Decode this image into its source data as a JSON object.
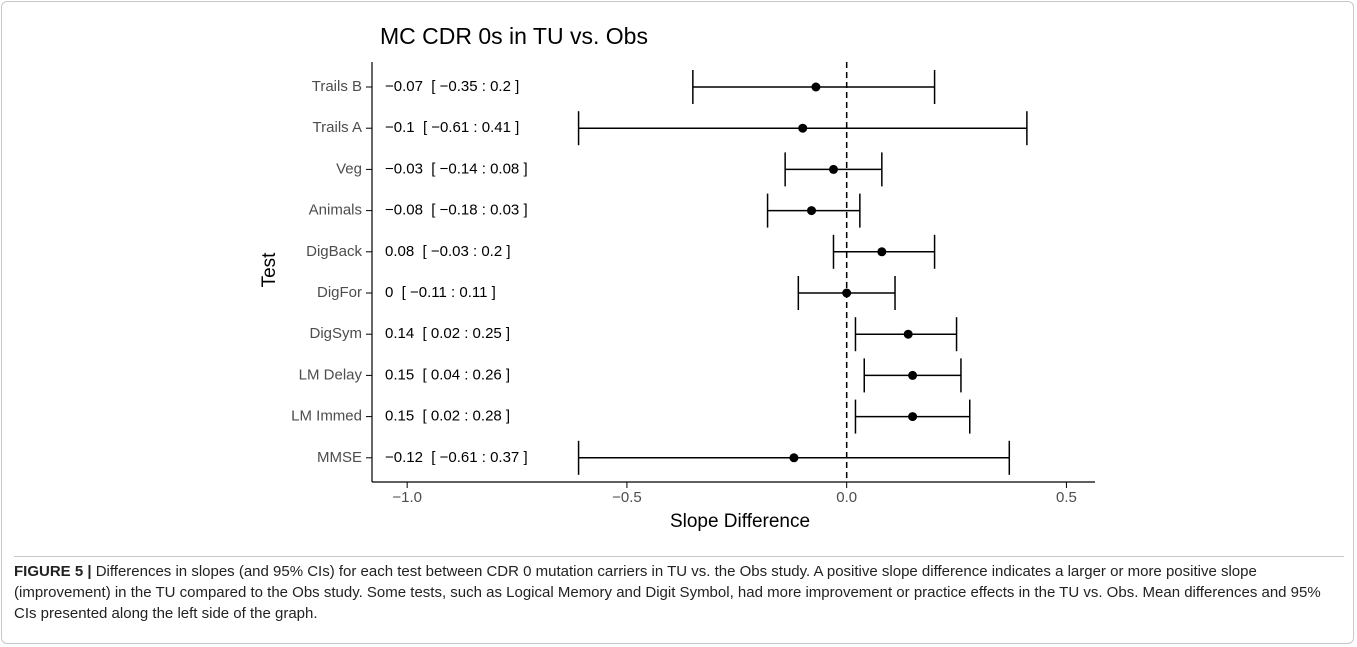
{
  "chart_data": {
    "type": "forest",
    "title": "MC CDR 0s in TU vs. Obs",
    "x_label": "Slope Difference",
    "y_label": "Test",
    "categories": [
      "Trails B",
      "Trails A",
      "Veg",
      "Animals",
      "DigBack",
      "DigFor",
      "DigSym",
      "LM Delay",
      "LM Immed",
      "MMSE"
    ],
    "values": [
      -0.07,
      -0.1,
      -0.03,
      -0.08,
      0.08,
      0,
      0.14,
      0.15,
      0.15,
      -0.12
    ],
    "lower": [
      -0.35,
      -0.61,
      -0.14,
      -0.18,
      -0.03,
      -0.11,
      0.02,
      0.04,
      0.02,
      -0.61
    ],
    "upper": [
      0.2,
      0.41,
      0.08,
      0.03,
      0.2,
      0.11,
      0.25,
      0.26,
      0.28,
      0.37
    ],
    "value_labels": [
      "−0.07  [ −0.35 : 0.2 ]",
      "−0.1  [ −0.61 : 0.41 ]",
      "−0.03  [ −0.14 : 0.08 ]",
      "−0.08  [ −0.18 : 0.03 ]",
      "0.08  [ −0.03 : 0.2 ]",
      "0  [ −0.11 : 0.11 ]",
      "0.14  [ 0.02 : 0.25 ]",
      "0.15  [ 0.04 : 0.26 ]",
      "0.15  [ 0.02 : 0.28 ]",
      "−0.12  [ −0.61 : 0.37 ]"
    ],
    "xlim": [
      -1.08,
      0.565
    ],
    "xticks": [
      {
        "value": -1.0,
        "label": "−1.0"
      },
      {
        "value": -0.5,
        "label": "−0.5"
      },
      {
        "value": 0,
        "label": "0.0"
      },
      {
        "value": 0.5,
        "label": "0.5"
      }
    ],
    "reference_line": 0,
    "color": "#000000"
  },
  "caption": {
    "label": "FIGURE 5 |",
    "text": " Differences in slopes (and 95% CIs) for each test between CDR 0 mutation carriers in TU vs. the Obs study. A positive slope difference indicates a larger or more positive slope (improvement) in the TU compared to the Obs study. Some tests, such as Logical Memory and Digit Symbol, had more improvement or practice effects in the TU vs. Obs. Mean differences and 95% CIs presented along the left side of the graph."
  }
}
